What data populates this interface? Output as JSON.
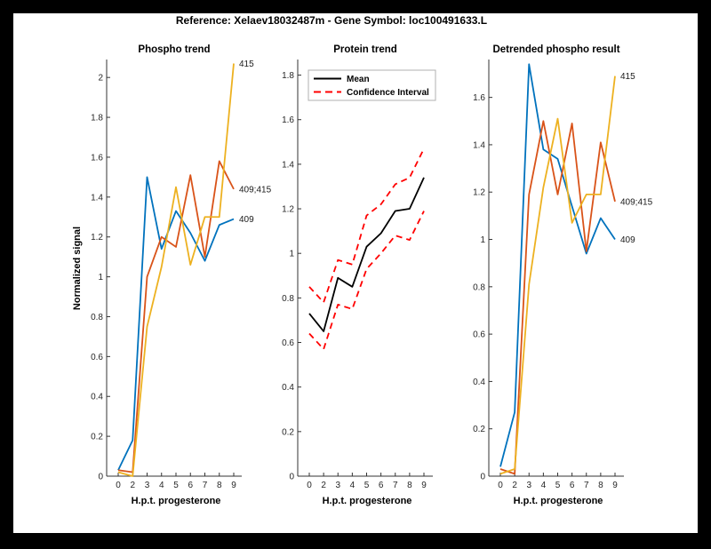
{
  "figure": {
    "title": "Reference:  Xelaev18032487m - Gene Symbol:  loc100491633.L"
  },
  "colors": {
    "blue": "#0072BD",
    "orange": "#D95319",
    "yellow": "#EDB120",
    "red": "#FF0000",
    "black": "#000000",
    "axis": "#333333",
    "tick_text": "#262626",
    "background": "#ffffff",
    "frame": "#000000"
  },
  "chart_data": [
    {
      "type": "line",
      "title": "Phospho trend",
      "xlabel": "H.p.t. progesterone",
      "ylabel": "Normalized signal",
      "x_ticklabels": [
        "0",
        "2",
        "3",
        "4",
        "5",
        "6",
        "7",
        "8",
        "9"
      ],
      "y_ticks": [
        0,
        0.2,
        0.4,
        0.6,
        0.8,
        1,
        1.2,
        1.4,
        1.6,
        1.8,
        2
      ],
      "ylim": [
        0,
        2.09
      ],
      "grid": false,
      "series": [
        {
          "name": "409",
          "color_key": "blue",
          "dash": false,
          "end_label": "409",
          "values": [
            0.03,
            0.18,
            1.5,
            1.14,
            1.33,
            1.22,
            1.08,
            1.26,
            1.29
          ]
        },
        {
          "name": "409;415",
          "color_key": "orange",
          "dash": false,
          "end_label": "409;415",
          "values": [
            0.03,
            0.02,
            1.0,
            1.2,
            1.15,
            1.51,
            1.1,
            1.58,
            1.44
          ]
        },
        {
          "name": "415",
          "color_key": "yellow",
          "dash": false,
          "end_label": "415",
          "values": [
            0.02,
            0.0,
            0.75,
            1.05,
            1.45,
            1.06,
            1.3,
            1.3,
            2.07
          ]
        }
      ]
    },
    {
      "type": "line",
      "title": "Protein trend",
      "xlabel": "H.p.t. progesterone",
      "ylabel": "",
      "x_ticklabels": [
        "0",
        "2",
        "3",
        "4",
        "5",
        "6",
        "7",
        "8",
        "9"
      ],
      "y_ticks": [
        0,
        0.2,
        0.4,
        0.6,
        0.8,
        1,
        1.2,
        1.4,
        1.6,
        1.8
      ],
      "ylim": [
        0,
        1.87
      ],
      "grid": false,
      "legend": {
        "position": "northwest",
        "entries": [
          {
            "label": "Mean",
            "color_key": "black",
            "dash": false
          },
          {
            "label": "Confidence Interval",
            "color_key": "red",
            "dash": true
          }
        ]
      },
      "series": [
        {
          "name": "Confidence Interval (upper)",
          "color_key": "red",
          "dash": true,
          "values": [
            0.85,
            0.78,
            0.97,
            0.95,
            1.17,
            1.22,
            1.31,
            1.34,
            1.47
          ]
        },
        {
          "name": "Confidence Interval (lower)",
          "color_key": "red",
          "dash": true,
          "values": [
            0.64,
            0.57,
            0.77,
            0.75,
            0.93,
            1.0,
            1.08,
            1.06,
            1.19
          ]
        },
        {
          "name": "Mean",
          "color_key": "black",
          "dash": false,
          "values": [
            0.73,
            0.65,
            0.89,
            0.85,
            1.03,
            1.09,
            1.19,
            1.2,
            1.34
          ]
        }
      ]
    },
    {
      "type": "line",
      "title": "Detrended phospho result",
      "xlabel": "H.p.t. progesterone",
      "ylabel": "",
      "x_ticklabels": [
        "0",
        "2",
        "3",
        "4",
        "5",
        "6",
        "7",
        "8",
        "9"
      ],
      "y_ticks": [
        0,
        0.2,
        0.4,
        0.6,
        0.8,
        1,
        1.2,
        1.4,
        1.6
      ],
      "ylim": [
        0,
        1.76
      ],
      "grid": false,
      "series": [
        {
          "name": "409",
          "color_key": "blue",
          "dash": false,
          "end_label": "409",
          "values": [
            0.04,
            0.27,
            1.74,
            1.38,
            1.34,
            1.14,
            0.94,
            1.09,
            1.0
          ]
        },
        {
          "name": "409;415",
          "color_key": "orange",
          "dash": false,
          "end_label": "409;415",
          "values": [
            0.03,
            0.01,
            1.19,
            1.5,
            1.19,
            1.49,
            0.95,
            1.41,
            1.16
          ]
        },
        {
          "name": "415",
          "color_key": "yellow",
          "dash": false,
          "end_label": "415",
          "values": [
            0.01,
            0.03,
            0.81,
            1.22,
            1.51,
            1.07,
            1.19,
            1.19,
            1.69
          ]
        }
      ]
    }
  ]
}
